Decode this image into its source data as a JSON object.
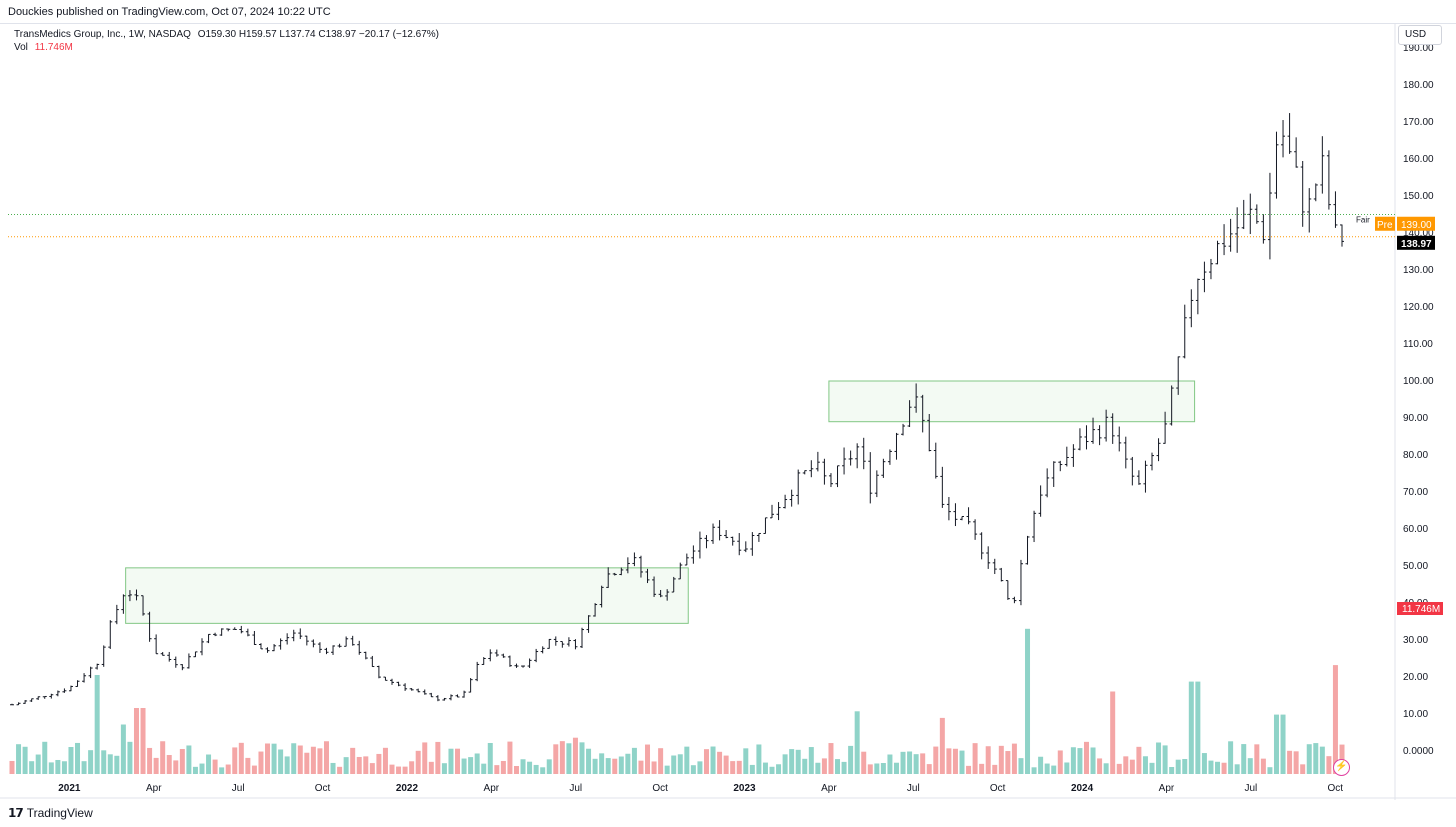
{
  "header": {
    "published": "Douckies published on TradingView.com, Oct 07, 2024 10:22 UTC",
    "currency": "USD"
  },
  "legend": {
    "symbol": "TransMedics Group, Inc., 1W, NASDAQ",
    "ohlc": "O159.30 H159.57 L137.74 C138.97 −20.17 (−12.67%)",
    "vol_label": "Vol",
    "vol_value": "11.746M"
  },
  "footer": {
    "brand": "TradingView"
  },
  "colors": {
    "up_volume": "#8fd3c8",
    "down_volume": "#f4a6a6",
    "zone_border": "#81c784",
    "zone_fill": "#f3faf3",
    "price_label_bg": "#000000",
    "pre_label_bg": "#ff9800",
    "vol_label_bg": "#f23645",
    "fair_line": "#4caf50",
    "last_line": "#ff9800"
  },
  "chart_data": {
    "type": "ohlc",
    "title": "TransMedics Group, Inc., 1W, NASDAQ",
    "xlabel": "",
    "ylabel": "",
    "x_ticks": [
      "2021",
      "Apr",
      "Jul",
      "Oct",
      "2022",
      "Apr",
      "Jul",
      "Oct",
      "2023",
      "Apr",
      "Jul",
      "Oct",
      "2024",
      "Apr",
      "Jul",
      "Oct"
    ],
    "y_ticks": [
      "190.00",
      "180.00",
      "170.00",
      "160.00",
      "150.00",
      "140.00",
      "130.00",
      "120.00",
      "110.00",
      "100.00",
      "90.00",
      "80.00",
      "70.00",
      "60.00",
      "50.00",
      "40.00",
      "30.00",
      "20.00",
      "10.00",
      "0.0000"
    ],
    "ylim": [
      0,
      190
    ],
    "grid": false,
    "last_price_label": "138.97",
    "pre_tag": "Pre",
    "pre_price_label": "139.00",
    "fair_label": "Fair",
    "volume_label": "11.746M",
    "zones": [
      {
        "from": "2021-03",
        "to": "2022-11",
        "low": 34.5,
        "high": 49.5
      },
      {
        "from": "2023-04",
        "to": "2024-05",
        "low": 89,
        "high": 100
      }
    ],
    "close_series": [
      {
        "t": "2020-11",
        "c": 12.5
      },
      {
        "t": "2021-01",
        "c": 17
      },
      {
        "t": "2021-02",
        "c": 24
      },
      {
        "t": "2021-02b",
        "c": 35
      },
      {
        "t": "2021-03",
        "c": 44
      },
      {
        "t": "2021-03b",
        "c": 40
      },
      {
        "t": "2021-04",
        "c": 27
      },
      {
        "t": "2021-05",
        "c": 23
      },
      {
        "t": "2021-06",
        "c": 32
      },
      {
        "t": "2021-07",
        "c": 33
      },
      {
        "t": "2021-08",
        "c": 27
      },
      {
        "t": "2021-09",
        "c": 32
      },
      {
        "t": "2021-10",
        "c": 27
      },
      {
        "t": "2021-11",
        "c": 30
      },
      {
        "t": "2021-12",
        "c": 20
      },
      {
        "t": "2022-01",
        "c": 17
      },
      {
        "t": "2022-02",
        "c": 14
      },
      {
        "t": "2022-03",
        "c": 15
      },
      {
        "t": "2022-03b",
        "c": 23
      },
      {
        "t": "2022-04",
        "c": 27
      },
      {
        "t": "2022-05",
        "c": 22
      },
      {
        "t": "2022-06",
        "c": 30
      },
      {
        "t": "2022-07",
        "c": 29
      },
      {
        "t": "2022-07b",
        "c": 37
      },
      {
        "t": "2022-08",
        "c": 47
      },
      {
        "t": "2022-09",
        "c": 52
      },
      {
        "t": "2022-10",
        "c": 41
      },
      {
        "t": "2022-11",
        "c": 53
      },
      {
        "t": "2022-12",
        "c": 60
      },
      {
        "t": "2023-01",
        "c": 55
      },
      {
        "t": "2023-02",
        "c": 65
      },
      {
        "t": "2023-03",
        "c": 74
      },
      {
        "t": "2023-03b",
        "c": 77
      },
      {
        "t": "2023-04",
        "c": 72
      },
      {
        "t": "2023-05",
        "c": 82
      },
      {
        "t": "2023-05b",
        "c": 71
      },
      {
        "t": "2023-06",
        "c": 80
      },
      {
        "t": "2023-07",
        "c": 96
      },
      {
        "t": "2023-07b",
        "c": 85
      },
      {
        "t": "2023-08",
        "c": 66
      },
      {
        "t": "2023-09",
        "c": 60
      },
      {
        "t": "2023-10",
        "c": 48
      },
      {
        "t": "2023-10b",
        "c": 38
      },
      {
        "t": "2023-11",
        "c": 57
      },
      {
        "t": "2023-11b",
        "c": 70
      },
      {
        "t": "2023-12",
        "c": 76
      },
      {
        "t": "2024-01",
        "c": 84
      },
      {
        "t": "2024-02",
        "c": 89
      },
      {
        "t": "2024-02b",
        "c": 78
      },
      {
        "t": "2024-03",
        "c": 71
      },
      {
        "t": "2024-04",
        "c": 88
      },
      {
        "t": "2024-05",
        "c": 128
      },
      {
        "t": "2024-06",
        "c": 138
      },
      {
        "t": "2024-07",
        "c": 145
      },
      {
        "t": "2024-07b",
        "c": 140
      },
      {
        "t": "2024-08",
        "c": 170
      },
      {
        "t": "2024-09",
        "c": 145
      },
      {
        "t": "2024-09b",
        "c": 159
      },
      {
        "t": "2024-10",
        "c": 139
      }
    ],
    "volume_series": [
      {
        "t": "2021-02",
        "v": 30,
        "dir": "up"
      },
      {
        "t": "2021-03",
        "v": 15,
        "dir": "down"
      },
      {
        "t": "2021-03b",
        "v": 20,
        "dir": "down"
      },
      {
        "t": "2022-07",
        "v": 11,
        "dir": "up"
      },
      {
        "t": "2023-05",
        "v": 19,
        "dir": "up"
      },
      {
        "t": "2023-08",
        "v": 17,
        "dir": "down"
      },
      {
        "t": "2023-11",
        "v": 44,
        "dir": "up"
      },
      {
        "t": "2024-02",
        "v": 25,
        "dir": "up"
      },
      {
        "t": "2024-05",
        "v": 28,
        "dir": "up"
      },
      {
        "t": "2024-08",
        "v": 18,
        "dir": "up"
      },
      {
        "t": "2024-10",
        "v": 33,
        "dir": "down"
      }
    ]
  }
}
